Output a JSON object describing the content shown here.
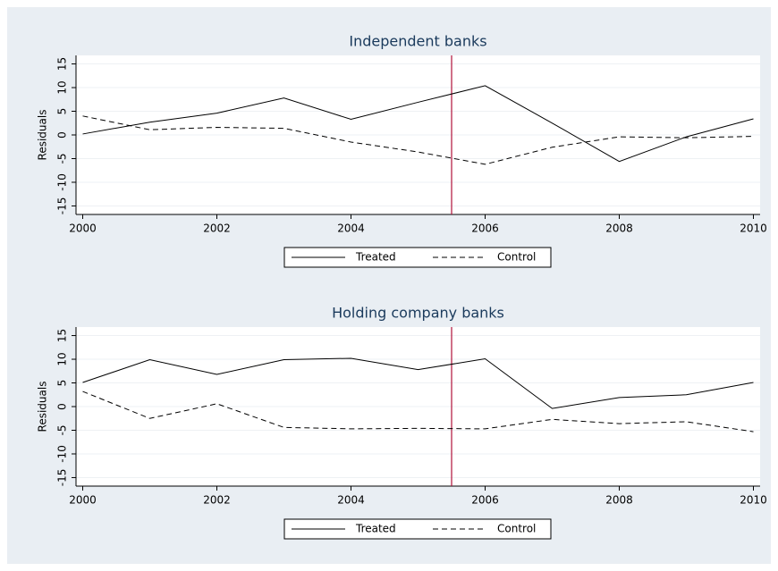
{
  "chart_data": [
    {
      "type": "line",
      "title": "Independent banks",
      "y_label": "Residuals",
      "x": [
        2000,
        2001,
        2002,
        2003,
        2004,
        2005,
        2006,
        2007,
        2008,
        2009,
        2010
      ],
      "series": [
        {
          "name": "Treated",
          "color": "#000000",
          "dash": "solid",
          "values": [
            0.2,
            2.7,
            4.6,
            7.8,
            3.3,
            6.9,
            10.4,
            2.5,
            -5.6,
            -0.4,
            3.4
          ]
        },
        {
          "name": "Control",
          "color": "#000000",
          "dash": "dashed",
          "values": [
            4.0,
            1.1,
            1.6,
            1.4,
            -1.5,
            -3.6,
            -6.2,
            -2.6,
            -0.4,
            -0.6,
            -0.3
          ]
        }
      ],
      "xlim": [
        1999.9,
        2010.1
      ],
      "xticks": [
        2000,
        2002,
        2004,
        2006,
        2008,
        2010
      ],
      "ylim": [
        -16.8,
        16.8
      ],
      "yticks": [
        -15,
        -10,
        -5,
        0,
        5,
        10,
        15
      ],
      "xline": 2005.5,
      "xline_color": "#b0103a",
      "grid": true,
      "legend": "bottom"
    },
    {
      "type": "line",
      "title": "Holding company banks",
      "y_label": "Residuals",
      "x": [
        2000,
        2001,
        2002,
        2003,
        2004,
        2005,
        2006,
        2007,
        2008,
        2009,
        2010
      ],
      "series": [
        {
          "name": "Treated",
          "color": "#000000",
          "dash": "solid",
          "values": [
            5.1,
            9.9,
            6.8,
            9.9,
            10.2,
            7.8,
            10.1,
            -0.4,
            1.9,
            2.5,
            5.1
          ]
        },
        {
          "name": "Control",
          "color": "#000000",
          "dash": "dashed",
          "values": [
            3.2,
            -2.5,
            0.6,
            -4.4,
            -4.7,
            -4.6,
            -4.7,
            -2.7,
            -3.6,
            -3.2,
            -5.3
          ]
        }
      ],
      "xlim": [
        1999.9,
        2010.1
      ],
      "xticks": [
        2000,
        2002,
        2004,
        2006,
        2008,
        2010
      ],
      "ylim": [
        -16.8,
        16.8
      ],
      "yticks": [
        -15,
        -10,
        -5,
        0,
        5,
        10,
        15
      ],
      "xline": 2005.5,
      "xline_color": "#b0103a",
      "grid": true,
      "legend": "bottom"
    }
  ]
}
